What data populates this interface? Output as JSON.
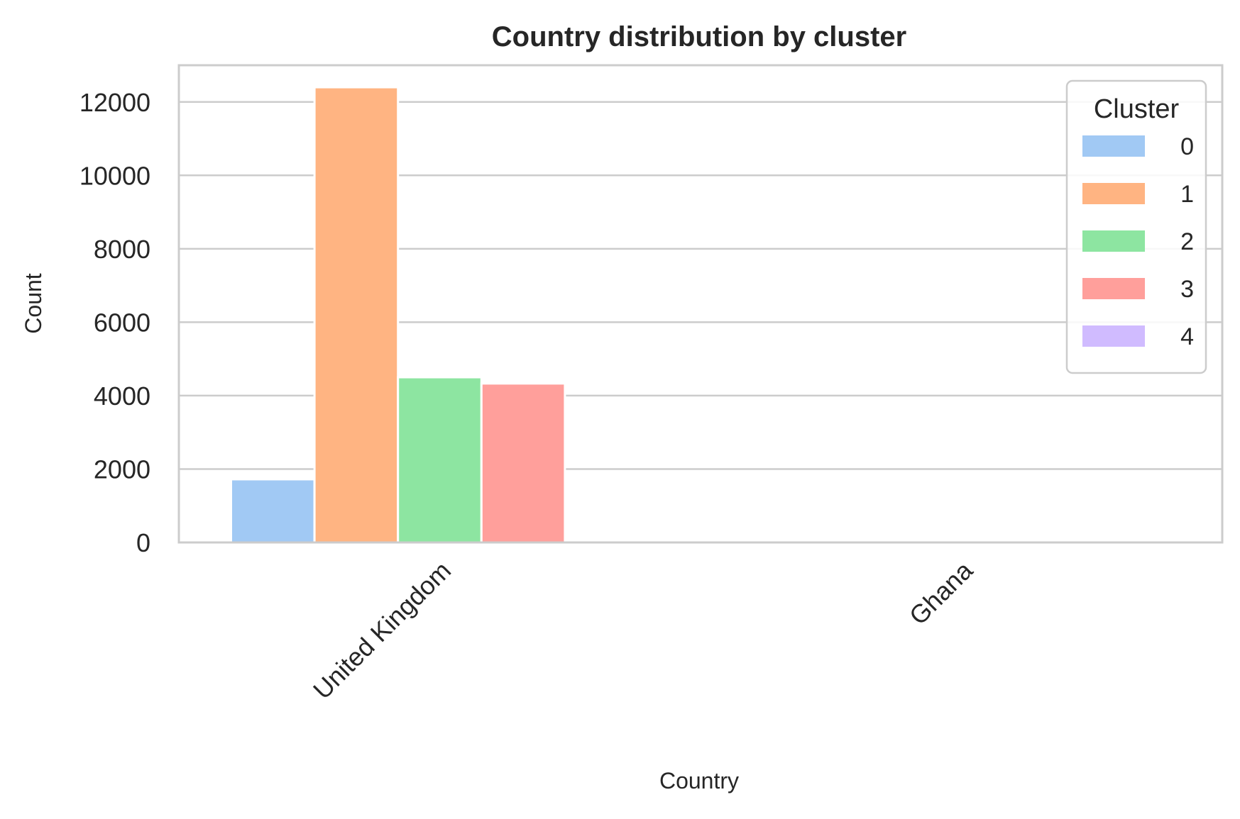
{
  "chart_data": {
    "type": "bar",
    "title": "Country distribution by cluster",
    "xlabel": "Country",
    "ylabel": "Count",
    "categories": [
      "United Kingdom",
      "Ghana"
    ],
    "ylim": [
      0,
      13000
    ],
    "yticks": [
      0,
      2000,
      4000,
      6000,
      8000,
      10000,
      12000
    ],
    "grid": true,
    "legend": {
      "title": "Cluster",
      "placement": "top-right"
    },
    "series": [
      {
        "name": "0",
        "color": "#a1c9f4",
        "values": [
          1720,
          0
        ]
      },
      {
        "name": "1",
        "color": "#ffb482",
        "values": [
          12400,
          0
        ]
      },
      {
        "name": "2",
        "color": "#8de5a1",
        "values": [
          4500,
          0
        ]
      },
      {
        "name": "3",
        "color": "#ff9f9b",
        "values": [
          4330,
          0
        ]
      },
      {
        "name": "4",
        "color": "#d0bbff",
        "values": [
          0,
          0
        ]
      }
    ]
  }
}
